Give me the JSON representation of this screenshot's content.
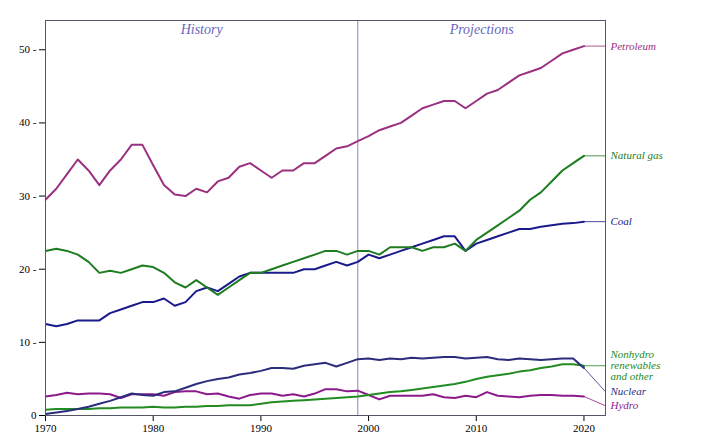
{
  "chart_data": {
    "type": "line",
    "x": [
      1970,
      1971,
      1972,
      1973,
      1974,
      1975,
      1976,
      1977,
      1978,
      1979,
      1980,
      1981,
      1982,
      1983,
      1984,
      1985,
      1986,
      1987,
      1988,
      1989,
      1990,
      1991,
      1992,
      1993,
      1994,
      1995,
      1996,
      1997,
      1998,
      1999,
      2000,
      2001,
      2002,
      2003,
      2004,
      2005,
      2006,
      2007,
      2008,
      2009,
      2010,
      2011,
      2012,
      2013,
      2014,
      2015,
      2016,
      2017,
      2018,
      2019,
      2020
    ],
    "series": [
      {
        "name": "Hydro",
        "color": "#8b1a8b",
        "values": [
          2.6,
          2.8,
          3.1,
          2.9,
          3.0,
          3.0,
          2.9,
          2.4,
          2.9,
          2.9,
          2.9,
          2.7,
          3.2,
          3.3,
          3.3,
          2.9,
          3.0,
          2.6,
          2.3,
          2.8,
          3.0,
          3.0,
          2.7,
          2.9,
          2.6,
          3.0,
          3.6,
          3.6,
          3.3,
          3.4,
          2.8,
          2.2,
          2.7,
          2.7,
          2.7,
          2.7,
          2.9,
          2.5,
          2.4,
          2.7,
          2.5,
          3.2,
          2.7,
          2.6,
          2.5,
          2.7,
          2.8,
          2.8,
          2.7,
          2.7,
          2.6
        ]
      },
      {
        "name": "Nonhydro\nrenewables\nand other",
        "color": "#228b22",
        "values": [
          0.8,
          0.9,
          0.9,
          0.9,
          0.9,
          1.0,
          1.0,
          1.1,
          1.1,
          1.1,
          1.2,
          1.1,
          1.1,
          1.2,
          1.2,
          1.3,
          1.3,
          1.4,
          1.4,
          1.4,
          1.6,
          1.8,
          1.9,
          2.0,
          2.1,
          2.2,
          2.3,
          2.4,
          2.5,
          2.6,
          2.8,
          3.0,
          3.2,
          3.3,
          3.5,
          3.7,
          3.9,
          4.1,
          4.3,
          4.6,
          5.0,
          5.3,
          5.5,
          5.7,
          6.0,
          6.2,
          6.5,
          6.7,
          7.0,
          7.0,
          6.8
        ]
      },
      {
        "name": "Nuclear",
        "color": "#2c2c7c",
        "values": [
          0.2,
          0.4,
          0.6,
          0.9,
          1.2,
          1.6,
          2.0,
          2.5,
          3.0,
          2.8,
          2.7,
          3.2,
          3.3,
          3.8,
          4.3,
          4.7,
          5.0,
          5.2,
          5.6,
          5.8,
          6.1,
          6.5,
          6.5,
          6.4,
          6.8,
          7.0,
          7.2,
          6.7,
          7.2,
          7.7,
          7.8,
          7.6,
          7.8,
          7.7,
          7.9,
          7.8,
          7.9,
          8.0,
          8.0,
          7.8,
          7.9,
          8.0,
          7.7,
          7.6,
          7.8,
          7.7,
          7.6,
          7.7,
          7.8,
          7.8,
          6.5
        ]
      },
      {
        "name": "Coal",
        "color": "#1a1a8c",
        "values": [
          12.5,
          12.2,
          12.5,
          13.0,
          13.0,
          13.0,
          14.0,
          14.5,
          15.0,
          15.5,
          15.5,
          16.0,
          15.0,
          15.5,
          17.0,
          17.5,
          17.0,
          18.0,
          19.0,
          19.5,
          19.5,
          19.5,
          19.5,
          19.5,
          20.0,
          20.0,
          20.5,
          21.0,
          20.5,
          21.0,
          22.0,
          21.5,
          22.0,
          22.5,
          23.0,
          23.5,
          24.0,
          24.5,
          24.5,
          22.5,
          23.5,
          24.0,
          24.5,
          25.0,
          25.5,
          25.5,
          25.8,
          26.0,
          26.2,
          26.3,
          26.5
        ]
      },
      {
        "name": "Natural gas",
        "color": "#1e7c20",
        "values": [
          22.5,
          22.8,
          22.5,
          22.0,
          21.0,
          19.5,
          19.8,
          19.5,
          20.0,
          20.5,
          20.3,
          19.5,
          18.2,
          17.5,
          18.5,
          17.5,
          16.5,
          17.5,
          18.5,
          19.5,
          19.5,
          20.0,
          20.5,
          21.0,
          21.5,
          22.0,
          22.5,
          22.5,
          22.0,
          22.5,
          22.5,
          22.0,
          23.0,
          23.0,
          23.0,
          22.5,
          23.0,
          23.0,
          23.5,
          22.5,
          24.0,
          25.0,
          26.0,
          27.0,
          28.0,
          29.5,
          30.5,
          32.0,
          33.5,
          34.5,
          35.5
        ]
      },
      {
        "name": "Petroleum",
        "color": "#9b3080",
        "values": [
          29.5,
          31.0,
          33.0,
          35.0,
          33.5,
          31.5,
          33.5,
          35.0,
          37.0,
          37.0,
          34.2,
          31.5,
          30.2,
          30.0,
          31.0,
          30.5,
          32.0,
          32.5,
          34.0,
          34.5,
          33.5,
          32.5,
          33.5,
          33.5,
          34.5,
          34.5,
          35.5,
          36.5,
          36.8,
          37.5,
          38.2,
          39.0,
          39.5,
          40.0,
          41.0,
          42.0,
          42.5,
          43.0,
          43.0,
          42.0,
          43.0,
          44.0,
          44.5,
          45.5,
          46.5,
          47.0,
          47.5,
          48.5,
          49.5,
          50.0,
          50.5
        ]
      }
    ],
    "xlim": [
      1970,
      2022
    ],
    "xticks": [
      1970,
      1980,
      1990,
      2000,
      2010,
      2020
    ],
    "ylim": [
      0,
      54
    ],
    "yticks": [
      0,
      {
        "value": 10,
        "label": "10 -"
      },
      {
        "value": 20,
        "label": "20 -"
      },
      {
        "value": 30,
        "label": "30 -"
      },
      {
        "value": 40,
        "label": "40 -"
      },
      {
        "value": 50,
        "label": "50 -"
      }
    ],
    "annotations": [
      {
        "type": "vline",
        "x": 1999,
        "color": "#8888bb"
      },
      {
        "text": "History",
        "color": "#6666bb"
      },
      {
        "text": "Projections",
        "color": "#6666bb"
      }
    ],
    "grid": false
  }
}
